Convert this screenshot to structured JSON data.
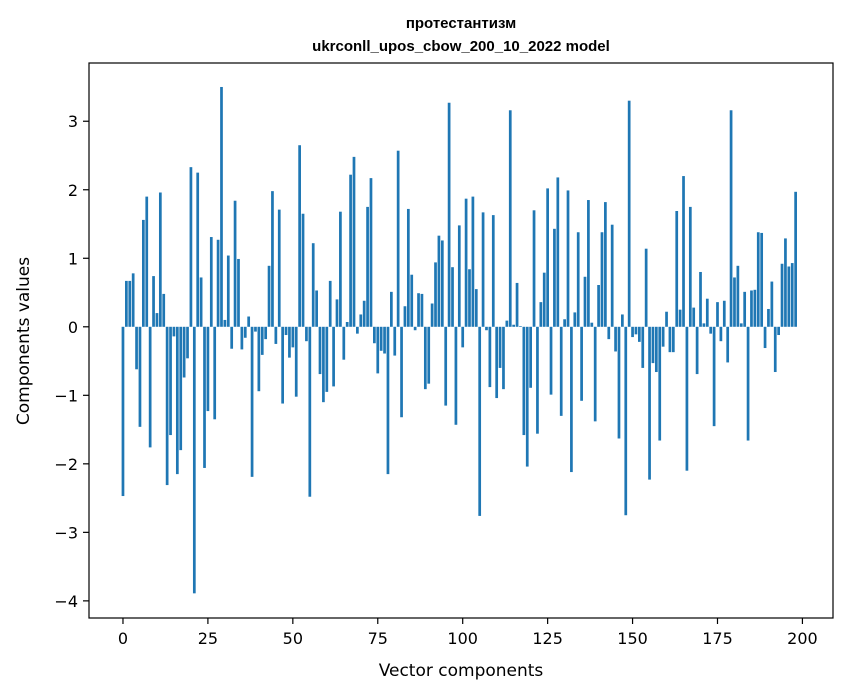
{
  "chart_data": {
    "type": "bar",
    "title": "протестантизм",
    "subtitle": "ukrconll_upos_cbow_200_10_2022 model",
    "xlabel": "Vector components",
    "ylabel": "Components values",
    "xlim": [
      -10,
      209
    ],
    "ylim": [
      -4.25,
      3.85
    ],
    "xticks": [
      0,
      25,
      50,
      75,
      100,
      125,
      150,
      175,
      200
    ],
    "yticks": [
      -4,
      -3,
      -2,
      -1,
      0,
      1,
      2,
      3
    ],
    "bar_color": "#1f77b4",
    "grid": false,
    "values": [
      -2.47,
      0.67,
      0.67,
      0.78,
      -0.62,
      -1.46,
      1.56,
      1.9,
      -1.76,
      0.74,
      0.2,
      1.96,
      0.48,
      -2.31,
      -1.58,
      -0.14,
      -2.15,
      -1.8,
      -0.74,
      -0.46,
      2.33,
      -3.89,
      2.25,
      0.72,
      -2.06,
      -1.23,
      1.31,
      -1.35,
      1.27,
      3.5,
      0.1,
      1.04,
      -0.32,
      1.84,
      0.99,
      -0.33,
      -0.16,
      0.15,
      -2.19,
      -0.07,
      -0.94,
      -0.41,
      -0.18,
      0.89,
      1.98,
      -0.25,
      1.71,
      -1.12,
      -0.12,
      -0.45,
      -0.3,
      -1.02,
      2.65,
      1.65,
      -0.21,
      -2.48,
      1.22,
      0.53,
      -0.69,
      -1.1,
      -0.95,
      0.67,
      -0.87,
      0.4,
      1.68,
      -0.48,
      0.07,
      2.22,
      2.48,
      -0.1,
      0.18,
      0.38,
      1.75,
      2.17,
      -0.24,
      -0.68,
      -0.35,
      -0.39,
      -2.15,
      0.51,
      -0.42,
      2.57,
      -1.32,
      0.3,
      1.72,
      0.76,
      -0.05,
      0.49,
      0.48,
      -0.91,
      -0.83,
      0.34,
      0.94,
      1.33,
      1.26,
      -1.15,
      3.27,
      0.87,
      -1.43,
      1.48,
      -0.3,
      1.87,
      0.84,
      1.9,
      0.55,
      -2.76,
      1.67,
      -0.05,
      -0.88,
      1.63,
      -1.04,
      -0.6,
      -0.91,
      0.09,
      3.16,
      0.03,
      0.64,
      0.01,
      -1.58,
      -2.04,
      -0.89,
      1.7,
      -1.56,
      0.36,
      0.79,
      2.02,
      -0.99,
      1.43,
      2.18,
      -1.3,
      0.11,
      1.99,
      -2.12,
      0.21,
      1.38,
      -1.08,
      0.73,
      1.85,
      0.06,
      -1.38,
      0.61,
      1.38,
      1.82,
      -0.18,
      1.49,
      -0.36,
      -1.63,
      0.18,
      -2.75,
      3.3,
      -0.15,
      -0.11,
      -0.22,
      -0.6,
      1.14,
      -2.23,
      -0.53,
      -0.66,
      -1.66,
      -0.29,
      0.22,
      -0.37,
      -0.37,
      1.69,
      0.25,
      2.2,
      -2.1,
      1.75,
      0.28,
      -0.69,
      0.8,
      0.05,
      0.41,
      -0.1,
      -1.45,
      0.36,
      -0.21,
      0.38,
      -0.52,
      3.16,
      0.72,
      0.89,
      0.05,
      0.51,
      -1.66,
      0.53,
      0.54,
      1.38,
      1.37,
      -0.31,
      0.26,
      0.66,
      -0.66,
      -0.12,
      0.92,
      1.29,
      0.88,
      0.93,
      1.97,
      0.0
    ]
  }
}
